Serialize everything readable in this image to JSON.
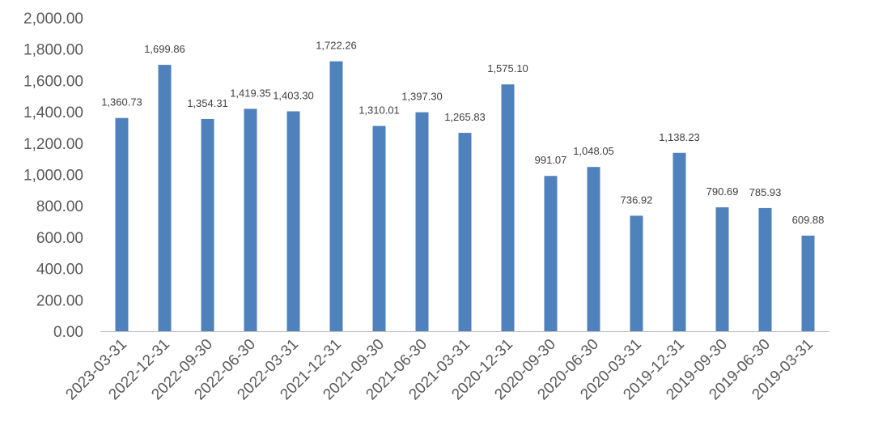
{
  "chart_data": {
    "type": "bar",
    "title": "",
    "xlabel": "",
    "ylabel": "",
    "ylim": [
      0,
      2000
    ],
    "ytick_values": [
      0,
      200,
      400,
      600,
      800,
      1000,
      1200,
      1400,
      1600,
      1800,
      2000
    ],
    "ytick_labels": [
      "0.00",
      "200.00",
      "400.00",
      "600.00",
      "800.00",
      "1,000.00",
      "1,200.00",
      "1,400.00",
      "1,600.00",
      "1,800.00",
      "2,000.00"
    ],
    "grid": false,
    "legend": "none",
    "bar_color": "#4f81bd",
    "categories": [
      "2023-03-31",
      "2022-12-31",
      "2022-09-30",
      "2022-06-30",
      "2022-03-31",
      "2021-12-31",
      "2021-09-30",
      "2021-06-30",
      "2021-03-31",
      "2020-12-31",
      "2020-09-30",
      "2020-06-30",
      "2020-03-31",
      "2019-12-31",
      "2019-09-30",
      "2019-06-30",
      "2019-03-31"
    ],
    "values": [
      1360.73,
      1699.86,
      1354.31,
      1419.35,
      1403.3,
      1722.26,
      1310.01,
      1397.3,
      1265.83,
      1575.1,
      991.07,
      1048.05,
      736.92,
      1138.23,
      790.69,
      785.93,
      609.88
    ],
    "data_labels": [
      "1,360.73",
      "1,699.86",
      "1,354.31",
      "1,419.35",
      "1,403.30",
      "1,722.26",
      "1,310.01",
      "1,397.30",
      "1,265.83",
      "1,575.10",
      "991.07",
      "1,048.05",
      "736.92",
      "1,138.23",
      "790.69",
      "785.93",
      "609.88"
    ]
  }
}
